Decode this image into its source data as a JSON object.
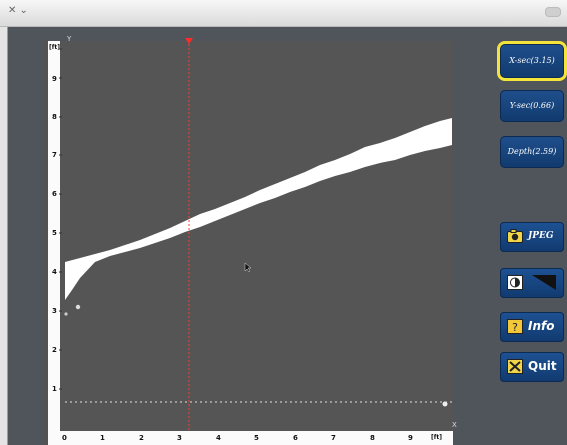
{
  "window": {
    "title": ""
  },
  "plot": {
    "y_axis_label": "Y",
    "x_axis_label": "X",
    "y_unit": "[ft]",
    "x_unit": "[ft]",
    "y_ticks": [
      "1",
      "2",
      "3",
      "4",
      "5",
      "6",
      "7",
      "8",
      "9"
    ],
    "x_ticks": [
      "0",
      "1",
      "2",
      "3",
      "4",
      "5",
      "6",
      "7",
      "8",
      "9"
    ],
    "cursor_x": 3.15,
    "guide_y": 0.66
  },
  "buttons": {
    "x_sec": "X-sec(3.15)",
    "y_sec": "Y-sec(0.66)",
    "depth": "Depth(2.59)",
    "jpeg": "JPEG",
    "info": "Info",
    "quit": "Quit"
  },
  "colors": {
    "button": "#17467f",
    "highlight": "#f4e43a",
    "cursor_line": "#ff3b3b",
    "plot_bg": "#555555",
    "band": "#ffffff"
  },
  "icons": {
    "camera": "camera-icon",
    "contrast": "contrast-icon",
    "colormap": "colormap-icon",
    "info": "info-icon",
    "quit": "close-icon"
  }
}
